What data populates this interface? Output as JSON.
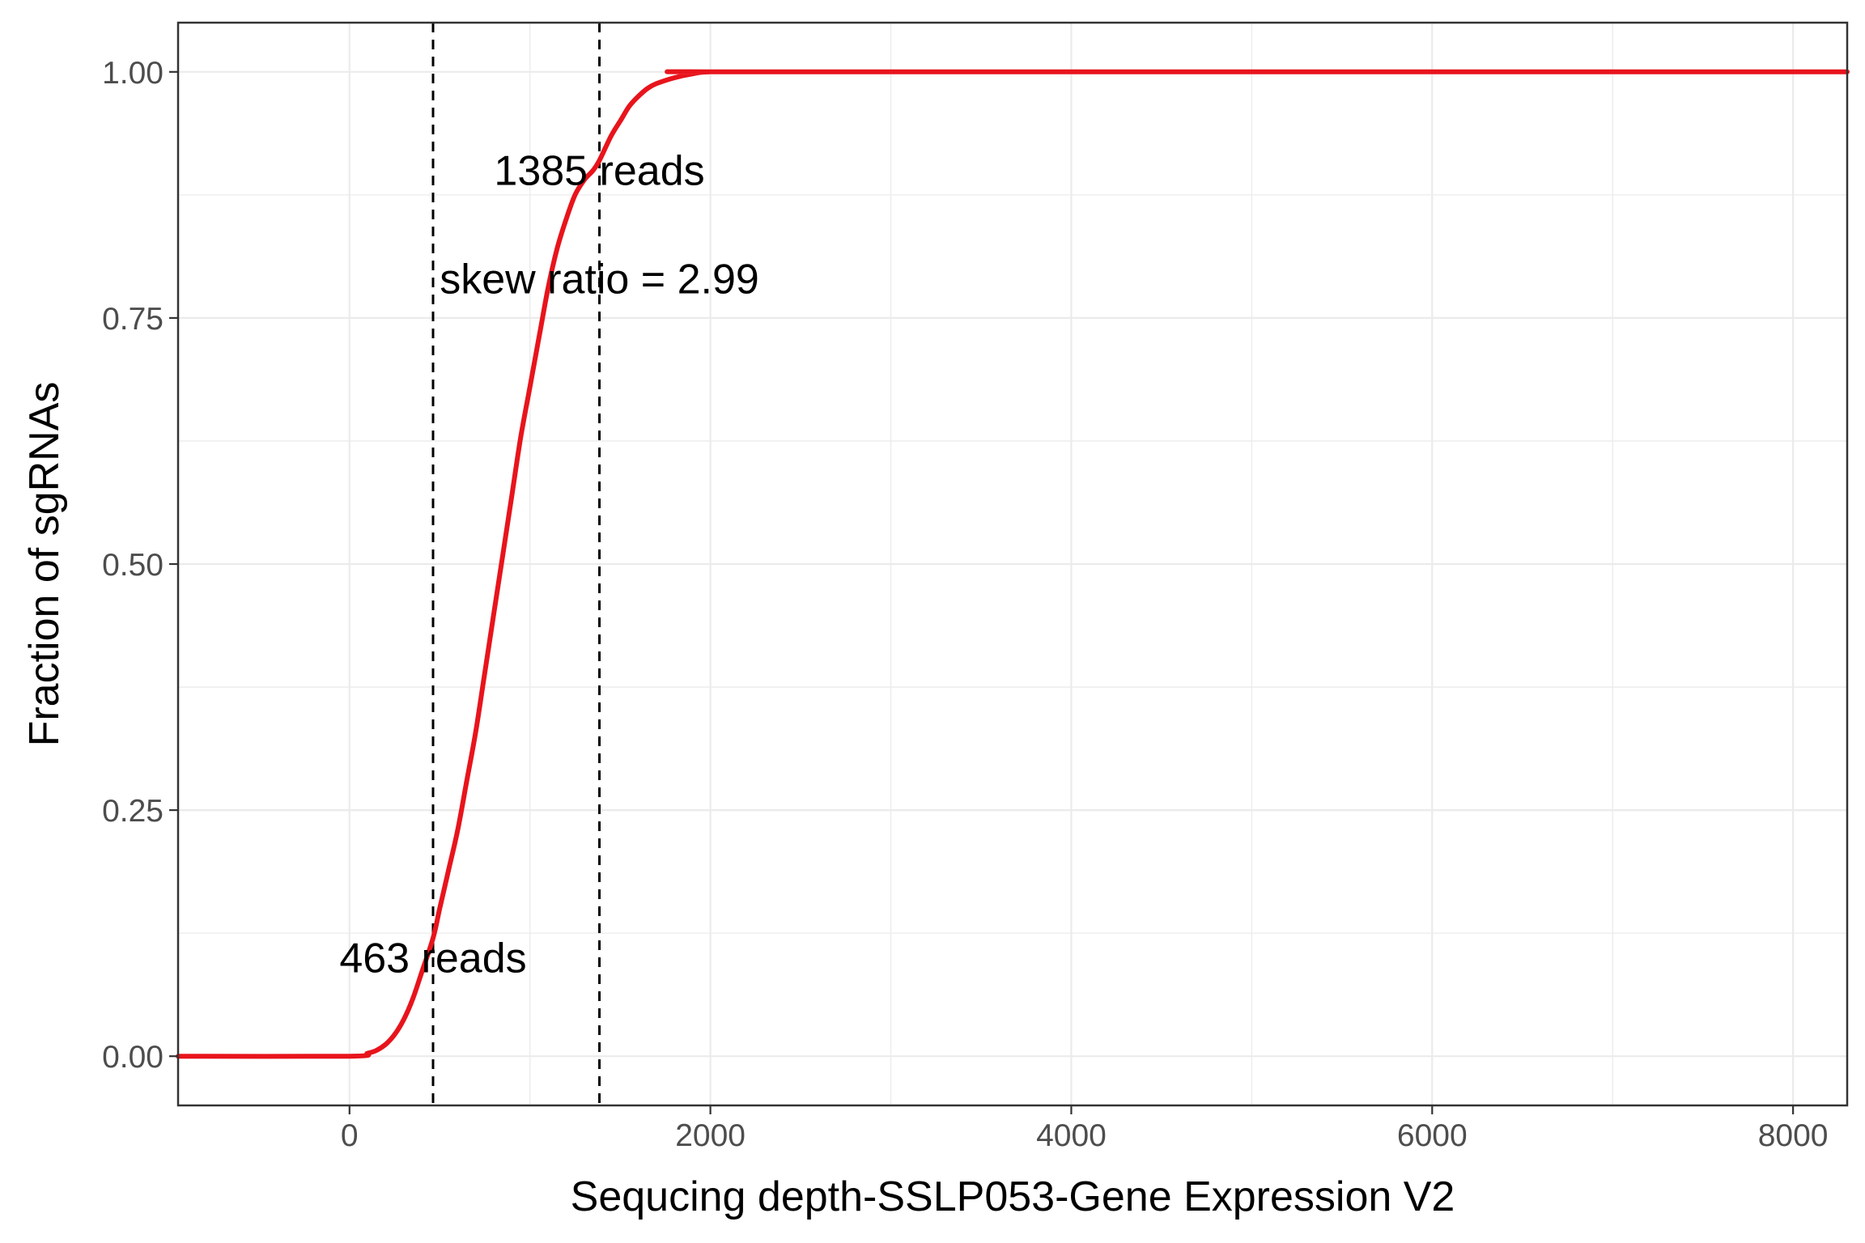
{
  "chart_data": {
    "type": "line",
    "title": "",
    "xlabel": "Sequcing depth-SSLP053-Gene Expression V2",
    "ylabel": "Fraction of sgRNAs",
    "xlim": [
      -950,
      8300
    ],
    "ylim": [
      -0.05,
      1.05
    ],
    "x_ticks": [
      0,
      2000,
      4000,
      6000,
      8000
    ],
    "x_tick_labels": [
      "0",
      "2000",
      "4000",
      "6000",
      "8000"
    ],
    "y_ticks": [
      0,
      0.25,
      0.5,
      0.75,
      1.0
    ],
    "y_tick_labels": [
      "0.00",
      "0.25",
      "0.50",
      "0.75",
      "1.00"
    ],
    "grid": true,
    "colors": {
      "curve": "#e8141c",
      "vline": "#000000",
      "grid": "#ebebeb"
    },
    "series": [
      {
        "x": [
          -950,
          0,
          100,
          150,
          200,
          250,
          300,
          350,
          400,
          463,
          500,
          550,
          600,
          650,
          700,
          750,
          800,
          850,
          900,
          950,
          1000,
          1050,
          1100,
          1150,
          1200,
          1250,
          1300,
          1350,
          1385,
          1450,
          1500,
          1550,
          1600,
          1650,
          1700,
          1800,
          1900,
          2000,
          2300,
          8300
        ],
        "y": [
          0,
          0,
          0.003,
          0.006,
          0.012,
          0.022,
          0.037,
          0.058,
          0.085,
          0.12,
          0.15,
          0.19,
          0.23,
          0.28,
          0.33,
          0.39,
          0.45,
          0.51,
          0.57,
          0.63,
          0.68,
          0.73,
          0.78,
          0.82,
          0.85,
          0.875,
          0.89,
          0.9,
          0.91,
          0.935,
          0.95,
          0.965,
          0.975,
          0.983,
          0.988,
          0.994,
          0.998,
          1.0,
          1.0,
          1.0
        ]
      }
    ],
    "vlines": [
      463,
      1385
    ],
    "annotations": [
      {
        "text": "1385 reads",
        "x": 1385,
        "y": 0.9
      },
      {
        "text": "skew ratio = 2.99",
        "x": 1385,
        "y": 0.79
      },
      {
        "text": "463 reads",
        "x": 463,
        "y": 0.1
      }
    ]
  }
}
